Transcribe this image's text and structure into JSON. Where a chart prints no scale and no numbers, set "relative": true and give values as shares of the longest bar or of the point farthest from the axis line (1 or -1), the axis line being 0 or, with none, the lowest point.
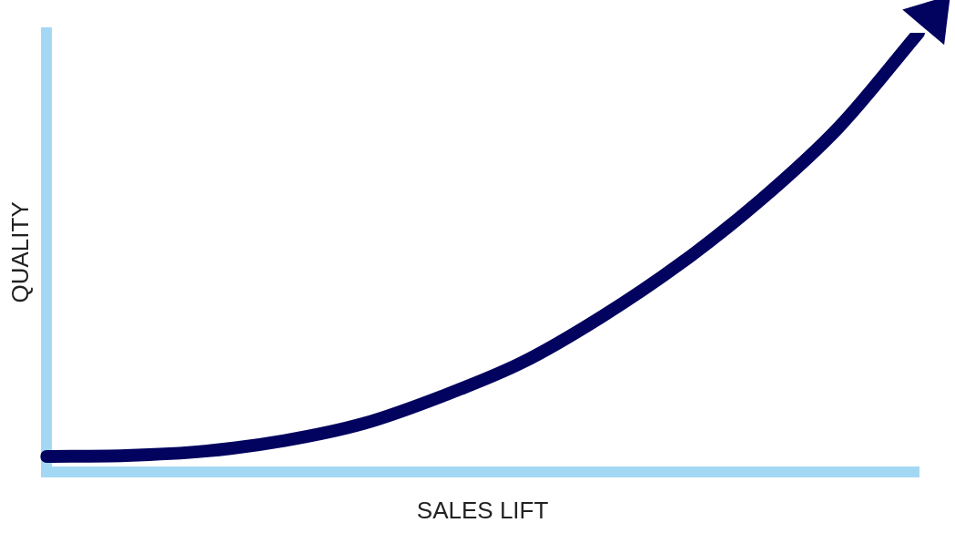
{
  "chart_data": {
    "type": "line",
    "relative": true,
    "xlabel": "SALES LIFT",
    "ylabel": "QUALITY",
    "categories": [
      null,
      null,
      null,
      null,
      null,
      null,
      null,
      null,
      null,
      null,
      null,
      null
    ],
    "series": [
      {
        "color": "#02025f",
        "values": [
          0.035,
          0.037,
          0.047,
          0.071,
          0.11,
          0.173,
          0.249,
          0.353,
          0.475,
          0.618,
          0.786,
          1
        ]
      }
    ],
    "grid": false,
    "legend": false,
    "marker": "none",
    "line_style": "solid"
  }
}
